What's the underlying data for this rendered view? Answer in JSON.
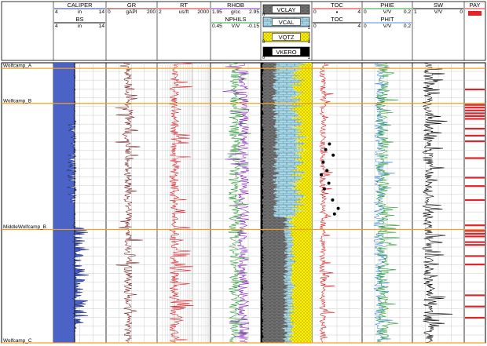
{
  "chart_data": {
    "type": "well-log",
    "formation_tops": [
      {
        "name": "Wolfcamp_A"
      },
      {
        "name": "Wolfcamp_B"
      },
      {
        "name": "MiddleWolfcamp_B"
      },
      {
        "name": "Wolfcamp_C"
      }
    ],
    "depth_range_relative": [
      0,
      1
    ],
    "formation_top_relative_depths": [
      0.02,
      0.145,
      0.595,
      1.0
    ],
    "tracks": [
      {
        "id": "t1",
        "curves": [
          {
            "name": "CALIPER",
            "min": "4",
            "unit": "in",
            "max": "14",
            "color": "#2c3c9c",
            "fill": "#4b63c6"
          },
          {
            "name": "BS",
            "min": "4",
            "unit": "in",
            "max": "14",
            "color": "#000000"
          }
        ]
      },
      {
        "id": "t2",
        "curves": [
          {
            "name": "GR",
            "min": "0",
            "unit": "gAPI",
            "max": "200",
            "color": "#7a2a2a"
          }
        ]
      },
      {
        "id": "t3",
        "curves": [
          {
            "name": "RT",
            "min": "2",
            "unit": "us/ft",
            "max": "2000",
            "color": "#e0242a"
          }
        ],
        "scale": "log"
      },
      {
        "id": "t4",
        "curves": [
          {
            "name": "RHOB",
            "min": "1.95",
            "unit": "g/cc",
            "max": "2.95",
            "color": "#8a2bbe"
          },
          {
            "name": "NPHILS",
            "min": "0.45",
            "unit": "V/V",
            "max": "-0.15",
            "color": "#2e9e3a"
          }
        ]
      },
      {
        "id": "t5",
        "volumetric": [
          {
            "name": "VCLAY",
            "pattern": "clay",
            "color": "#7d7d7d"
          },
          {
            "name": "VCAL",
            "pattern": "brick",
            "color": "#a9d8e8"
          },
          {
            "name": "VQTZ",
            "pattern": "dots",
            "color": "#fff200"
          },
          {
            "name": "VKERO",
            "min": "0",
            "max": "1",
            "color": "#000000"
          }
        ],
        "vclay_min": "0",
        "vcal_max": "1",
        "vqtz_min": "0",
        "vqtz_max": "1"
      },
      {
        "id": "t6",
        "curves": [
          {
            "name": "TOC",
            "min": "0",
            "marker": "•",
            "max": "4",
            "color": "#e0242a"
          },
          {
            "name": "TOC",
            "min": "0",
            "max": "4",
            "color": "#000000"
          }
        ]
      },
      {
        "id": "t7",
        "curves": [
          {
            "name": "PHIE",
            "min": "0",
            "unit": "V/V",
            "max": "0.2",
            "color": "#2e9e3a"
          },
          {
            "name": "PHIT",
            "min": "0",
            "unit": "V/V",
            "max": "0.2",
            "color": "#4a8fd4"
          }
        ]
      },
      {
        "id": "t8",
        "curves": [
          {
            "name": "SW",
            "min": "1",
            "unit": "V/V",
            "max": "0",
            "color": "#000000"
          }
        ]
      },
      {
        "id": "t9",
        "curves": [
          {
            "name": "PAY",
            "color": "#e0242a"
          }
        ]
      }
    ],
    "toc_core_points": [
      {
        "depth": 0.29,
        "toc": 1.4
      },
      {
        "depth": 0.31,
        "toc": 1.1
      },
      {
        "depth": 0.33,
        "toc": 1.7
      },
      {
        "depth": 0.355,
        "toc": 0.9
      },
      {
        "depth": 0.385,
        "toc": 1.2
      },
      {
        "depth": 0.4,
        "toc": 0.75
      },
      {
        "depth": 0.43,
        "toc": 1.35
      },
      {
        "depth": 0.45,
        "toc": 1.0
      },
      {
        "depth": 0.49,
        "toc": 1.65
      },
      {
        "depth": 0.52,
        "toc": 2.1
      },
      {
        "depth": 0.54,
        "toc": 1.8
      }
    ],
    "pay_flags_relative_depth": [
      0.095,
      0.15,
      0.16,
      0.17,
      0.18,
      0.19,
      0.2,
      0.235,
      0.26,
      0.28,
      0.34,
      0.41,
      0.44,
      0.49,
      0.58,
      0.6,
      0.61,
      0.62,
      0.64,
      0.65,
      0.69,
      0.72,
      0.83,
      0.87,
      0.91
    ]
  }
}
